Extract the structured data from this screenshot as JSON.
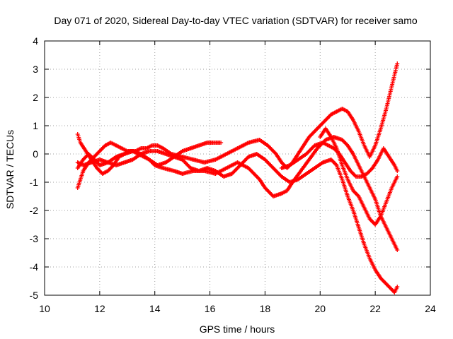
{
  "chart_data": {
    "type": "scatter",
    "title": "Day 071 of 2020, Sidereal Day-to-day VTEC variation (SDTVAR) for receiver samo",
    "xlabel": "GPS time / hours",
    "ylabel": "SDTVAR / TECUs",
    "xlim": [
      10,
      24
    ],
    "ylim": [
      -5,
      4
    ],
    "xticks": [
      "10",
      "12",
      "14",
      "16",
      "18",
      "20",
      "22",
      "24"
    ],
    "yticks": [
      "-5",
      "-4",
      "-3",
      "-2",
      "-1",
      "0",
      "1",
      "2",
      "3",
      "4"
    ],
    "grid": true,
    "legend": "none",
    "marker": "+",
    "color": "#ff0000",
    "series": [
      {
        "x": [
          11.2,
          11.3,
          11.5,
          11.7,
          11.9,
          12.1,
          12.3,
          12.5,
          12.7,
          12.9,
          13.1,
          13.3,
          13.5,
          13.7,
          13.9,
          14.1,
          14.3,
          14.6,
          15.0,
          15.4,
          15.8,
          16.2,
          16.6,
          17.0,
          17.4,
          17.8,
          18.1,
          18.4,
          18.6,
          18.8,
          19.0,
          19.2,
          19.4,
          19.6,
          19.8,
          20.0,
          20.2,
          20.4,
          20.6,
          20.8,
          21.0,
          21.2,
          21.4,
          21.6,
          21.8,
          22.0,
          22.2,
          22.4,
          22.6,
          22.8
        ],
        "y": [
          0.7,
          0.4,
          0.1,
          -0.2,
          -0.5,
          -0.7,
          -0.6,
          -0.4,
          -0.1,
          0.0,
          0.1,
          0.1,
          0.2,
          0.2,
          0.3,
          0.3,
          0.2,
          0.0,
          -0.1,
          -0.2,
          -0.3,
          -0.2,
          0.0,
          0.2,
          0.4,
          0.5,
          0.3,
          0.0,
          -0.3,
          -0.5,
          -0.3,
          0.0,
          0.3,
          0.6,
          0.8,
          1.0,
          1.2,
          1.4,
          1.5,
          1.6,
          1.5,
          1.2,
          0.8,
          0.3,
          -0.1,
          0.3,
          0.9,
          1.6,
          2.4,
          3.2
        ]
      },
      {
        "x": [
          11.2,
          11.4,
          11.6,
          11.8,
          12.0,
          12.2,
          12.4,
          12.6,
          12.8,
          13.0,
          13.2,
          13.4,
          13.6,
          13.8,
          14.0,
          14.3,
          14.7,
          15.0,
          15.4,
          15.8,
          16.2,
          16.6,
          17.0,
          17.4,
          17.8,
          18.0,
          18.3,
          18.6,
          18.8,
          19.0,
          19.3,
          19.6,
          19.9,
          20.2,
          20.5,
          20.8,
          21.0,
          21.2,
          21.4,
          21.6,
          21.8,
          22.0,
          22.2,
          22.4,
          22.6,
          22.8
        ],
        "y": [
          -1.2,
          -0.6,
          -0.3,
          -0.1,
          0.1,
          0.3,
          0.4,
          0.3,
          0.2,
          0.1,
          0.1,
          0.0,
          -0.1,
          -0.2,
          -0.4,
          -0.5,
          -0.6,
          -0.7,
          -0.6,
          -0.6,
          -0.7,
          -0.5,
          -0.3,
          -0.5,
          -0.9,
          -1.2,
          -1.5,
          -1.4,
          -1.3,
          -1.0,
          -0.6,
          -0.2,
          0.2,
          0.5,
          0.6,
          0.5,
          0.3,
          0.0,
          -0.4,
          -0.8,
          -1.2,
          -1.6,
          -2.2,
          -2.6,
          -3.0,
          -3.4
        ]
      },
      {
        "x": [
          11.2,
          11.4,
          11.7,
          12.0,
          12.3,
          12.6,
          12.9,
          13.2,
          13.5,
          13.8,
          14.1,
          14.4,
          14.7,
          15.0,
          15.3,
          15.6,
          15.9,
          16.2,
          16.5,
          16.8,
          17.1,
          17.4,
          17.7,
          18.0,
          18.3,
          18.6,
          18.9,
          19.2,
          19.5,
          19.8,
          20.1,
          20.4,
          20.6,
          20.8,
          21.0,
          21.2,
          21.4,
          21.6,
          21.8,
          22.0,
          22.2,
          22.4,
          22.6,
          22.7,
          22.8
        ],
        "y": [
          -0.3,
          -0.4,
          -0.3,
          -0.2,
          -0.3,
          -0.4,
          -0.3,
          -0.2,
          0.0,
          0.1,
          0.1,
          0.0,
          -0.1,
          -0.2,
          -0.5,
          -0.6,
          -0.5,
          -0.6,
          -0.8,
          -0.7,
          -0.4,
          -0.1,
          0.0,
          -0.2,
          -0.5,
          -0.8,
          -1.0,
          -0.9,
          -0.7,
          -0.5,
          -0.3,
          -0.2,
          -0.4,
          -0.9,
          -1.5,
          -2.0,
          -2.6,
          -3.2,
          -3.7,
          -4.1,
          -4.4,
          -4.6,
          -4.8,
          -4.9,
          -4.7
        ]
      },
      {
        "x": [
          11.2,
          11.4,
          11.6,
          11.8,
          12.0,
          12.3,
          12.6,
          12.9,
          13.2,
          13.5,
          13.8,
          14.1,
          14.4,
          14.7,
          15.0,
          15.3,
          15.6,
          15.9,
          16.1,
          16.4
        ],
        "y": [
          -0.5,
          -0.2,
          0.0,
          -0.2,
          -0.4,
          -0.3,
          -0.1,
          0.0,
          0.1,
          0.0,
          -0.2,
          -0.4,
          -0.3,
          -0.1,
          0.1,
          0.2,
          0.3,
          0.4,
          0.4,
          0.4
        ]
      },
      {
        "x": [
          18.6,
          18.9,
          19.2,
          19.5,
          19.8,
          20.1,
          20.3,
          20.5,
          20.7,
          20.9,
          21.1,
          21.3,
          21.5,
          21.7,
          21.9,
          22.1,
          22.3,
          22.5,
          22.7,
          22.8
        ],
        "y": [
          -0.5,
          -0.4,
          -0.2,
          0.0,
          0.3,
          0.4,
          0.3,
          0.2,
          0.0,
          -0.3,
          -0.6,
          -0.8,
          -0.8,
          -0.7,
          -0.5,
          -0.2,
          0.2,
          -0.1,
          -0.4,
          -0.6
        ]
      },
      {
        "x": [
          20.0,
          20.2,
          20.4,
          20.6,
          20.8,
          21.0,
          21.2,
          21.4,
          21.6,
          21.8,
          22.0,
          22.2,
          22.4,
          22.6,
          22.8
        ],
        "y": [
          0.6,
          0.9,
          0.6,
          0.2,
          -0.4,
          -0.9,
          -1.3,
          -1.5,
          -1.9,
          -2.3,
          -2.5,
          -2.2,
          -1.7,
          -1.2,
          -0.8
        ]
      }
    ]
  }
}
